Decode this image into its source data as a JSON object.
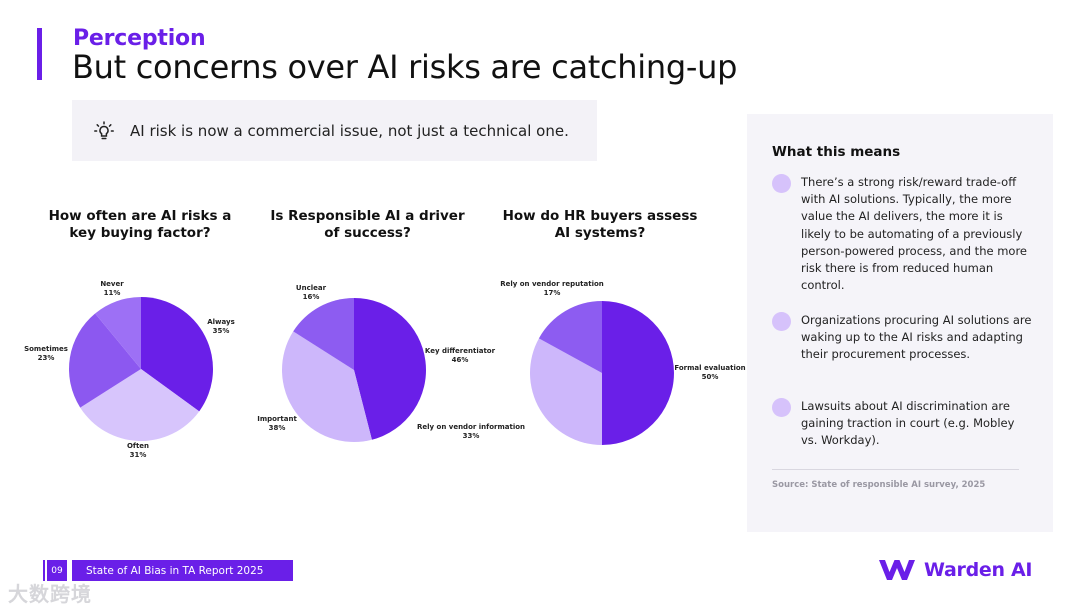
{
  "header": {
    "kicker": "Perception",
    "title": "But concerns over AI risks are catching-up"
  },
  "callout": {
    "icon": "lightbulb-icon",
    "text": "AI risk is now a commercial issue, not just a technical one."
  },
  "chart_data": [
    {
      "type": "pie",
      "title": "How often are AI risks a key buying factor?",
      "categories": [
        "Always",
        "Often",
        "Sometimes",
        "Never"
      ],
      "values": [
        35,
        31,
        23,
        11
      ],
      "value_labels": [
        "35%",
        "31%",
        "23%",
        "11%"
      ],
      "colors": [
        "#6a1fe8",
        "#d7c5fc",
        "#8c58f0",
        "#9d70f5"
      ]
    },
    {
      "type": "pie",
      "title": "Is Responsible AI a driver of success?",
      "categories": [
        "Key differentiator",
        "Important",
        "Unclear"
      ],
      "values": [
        46,
        38,
        16
      ],
      "value_labels": [
        "46%",
        "38%",
        "16%"
      ],
      "colors": [
        "#6a1fe8",
        "#cdb7fb",
        "#8d5cf1"
      ]
    },
    {
      "type": "pie",
      "title": "How do HR buyers assess AI systems?",
      "categories": [
        "Formal evaluation",
        "Rely on vendor information",
        "Rely on vendor reputation"
      ],
      "values": [
        50,
        33,
        17
      ],
      "value_labels": [
        "50%",
        "33%",
        "17%"
      ],
      "colors": [
        "#6a1fe8",
        "#cdb7fb",
        "#8d5cf1"
      ]
    }
  ],
  "sidebar": {
    "heading": "What this means",
    "items": [
      "There’s a strong risk/reward trade-off with AI solutions. Typically, the more value the AI delivers, the more it is likely to be automating of a previously person-powered process, and the more risk there is from reduced human control.",
      "Organizations procuring AI solutions are waking up to the AI risks and adapting their procurement processes.",
      "Lawsuits about AI discrimination are gaining traction in court (e.g. Mobley vs. Workday)."
    ],
    "source": "Source: State of responsible AI survey, 2025"
  },
  "footer": {
    "page_number": "09",
    "report_name": "State of AI Bias in TA Report 2025",
    "brand": "Warden AI",
    "watermark": "大数跨境"
  },
  "colors": {
    "accent": "#6a1fe8",
    "panel": "#f5f4f9"
  }
}
